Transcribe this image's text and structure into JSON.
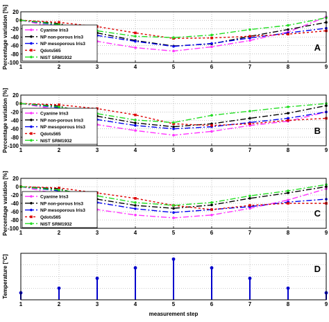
{
  "chart_data": [
    {
      "type": "line",
      "panel_letter": "A",
      "ylabel": "Percentage variation [%]",
      "xlabel": "",
      "xlim": [
        1,
        9
      ],
      "ylim": [
        -100,
        20
      ],
      "x_ticks": [
        1,
        2,
        3,
        4,
        5,
        6,
        7,
        8,
        9
      ],
      "y_ticks": [
        20,
        0,
        -20,
        -40,
        -60,
        -80,
        -100
      ],
      "grid": true,
      "legend_position": "left",
      "x": [
        1,
        2,
        3,
        4,
        5,
        6,
        7,
        8,
        9
      ],
      "series": [
        {
          "name": "Cyanine Iris3",
          "color": "#ff33ff",
          "dash": "8,3,2,3",
          "values": [
            0,
            -18,
            -50,
            -65,
            -73,
            -63,
            -48,
            -28,
            8
          ]
        },
        {
          "name": "NP non-porous Iris3",
          "color": "#000000",
          "dash": "8,3,2,3",
          "values": [
            0,
            -8,
            -30,
            -48,
            -61,
            -56,
            -38,
            -22,
            -5
          ]
        },
        {
          "name": "NP mesoporous Iris3",
          "color": "#0000ee",
          "dash": "8,3,2,3",
          "values": [
            0,
            -12,
            -36,
            -50,
            -62,
            -55,
            -42,
            -30,
            -19
          ]
        },
        {
          "name": "Qdots565",
          "color": "#dd0000",
          "dash": "3,3",
          "values": [
            0,
            -5,
            -15,
            -30,
            -43,
            -42,
            -38,
            -33,
            -25
          ]
        },
        {
          "name": "NIST SRM1932",
          "color": "#22dd22",
          "dash": "8,3,2,3",
          "values": [
            0,
            -10,
            -25,
            -38,
            -41,
            -35,
            -22,
            -12,
            6
          ]
        }
      ]
    },
    {
      "type": "line",
      "panel_letter": "B",
      "ylabel": "Percentage variation [%]",
      "xlabel": "",
      "xlim": [
        1,
        9
      ],
      "ylim": [
        -100,
        20
      ],
      "x_ticks": [
        1,
        2,
        3,
        4,
        5,
        6,
        7,
        8,
        9
      ],
      "y_ticks": [
        20,
        0,
        -20,
        -40,
        -60,
        -80,
        -100
      ],
      "grid": true,
      "legend_position": "left",
      "x": [
        1,
        2,
        3,
        4,
        5,
        6,
        7,
        8,
        9
      ],
      "series": [
        {
          "name": "Cyanine Iris3",
          "color": "#ff33ff",
          "dash": "8,3,2,3",
          "values": [
            0,
            -15,
            -50,
            -64,
            -75,
            -66,
            -52,
            -42,
            -20
          ]
        },
        {
          "name": "NP non-porous Iris3",
          "color": "#000000",
          "dash": "8,3,2,3",
          "values": [
            0,
            -6,
            -30,
            -46,
            -55,
            -48,
            -35,
            -23,
            -5
          ]
        },
        {
          "name": "NP mesoporous Iris3",
          "color": "#0000ee",
          "dash": "8,3,2,3",
          "values": [
            0,
            -10,
            -38,
            -52,
            -60,
            -55,
            -45,
            -35,
            -20
          ]
        },
        {
          "name": "Qdots565",
          "color": "#dd0000",
          "dash": "3,3",
          "values": [
            0,
            -3,
            -12,
            -27,
            -48,
            -52,
            -48,
            -40,
            -35
          ]
        },
        {
          "name": "NIST SRM1932",
          "color": "#22dd22",
          "dash": "8,3,2,3",
          "values": [
            0,
            -8,
            -24,
            -39,
            -45,
            -28,
            -18,
            -8,
            0
          ]
        }
      ]
    },
    {
      "type": "line",
      "panel_letter": "C",
      "ylabel": "Percentage variation [%]",
      "xlabel": "",
      "xlim": [
        1,
        9
      ],
      "ylim": [
        -100,
        20
      ],
      "x_ticks": [
        1,
        2,
        3,
        4,
        5,
        6,
        7,
        8,
        9
      ],
      "y_ticks": [
        20,
        0,
        -20,
        -40,
        -60,
        -80,
        -100
      ],
      "grid": true,
      "legend_position": "left",
      "x": [
        1,
        2,
        3,
        4,
        5,
        6,
        7,
        8,
        9
      ],
      "series": [
        {
          "name": "Cyanine Iris3",
          "color": "#ff33ff",
          "dash": "8,3,2,3",
          "values": [
            0,
            -18,
            -55,
            -68,
            -75,
            -68,
            -52,
            -32,
            -5
          ]
        },
        {
          "name": "NP non-porous Iris3",
          "color": "#000000",
          "dash": "8,3,2,3",
          "values": [
            0,
            -5,
            -30,
            -45,
            -52,
            -44,
            -28,
            -15,
            0
          ]
        },
        {
          "name": "NP mesoporous Iris3",
          "color": "#0000ee",
          "dash": "8,3,2,3",
          "values": [
            0,
            -10,
            -38,
            -53,
            -62,
            -55,
            -48,
            -37,
            -30
          ]
        },
        {
          "name": "Qdots565",
          "color": "#dd0000",
          "dash": "3,3",
          "values": [
            0,
            -3,
            -15,
            -28,
            -45,
            -55,
            -45,
            -40,
            -40
          ]
        },
        {
          "name": "NIST SRM1932",
          "color": "#22dd22",
          "dash": "8,3,2,3",
          "values": [
            0,
            -8,
            -22,
            -38,
            -45,
            -38,
            -22,
            -10,
            5
          ]
        }
      ]
    },
    {
      "type": "stem",
      "panel_letter": "D",
      "ylabel": "Temperature [°C]",
      "xlabel": "measurement step",
      "xlim": [
        1,
        9
      ],
      "ylim": [
        0,
        80
      ],
      "x_ticks": [
        1,
        2,
        3,
        4,
        5,
        6,
        7,
        8,
        9
      ],
      "grid": true,
      "color": "#0000cc",
      "x": [
        1,
        2,
        3,
        4,
        5,
        6,
        7,
        8,
        9
      ],
      "values": [
        12,
        20,
        37,
        55,
        70,
        55,
        37,
        20,
        12
      ]
    }
  ]
}
